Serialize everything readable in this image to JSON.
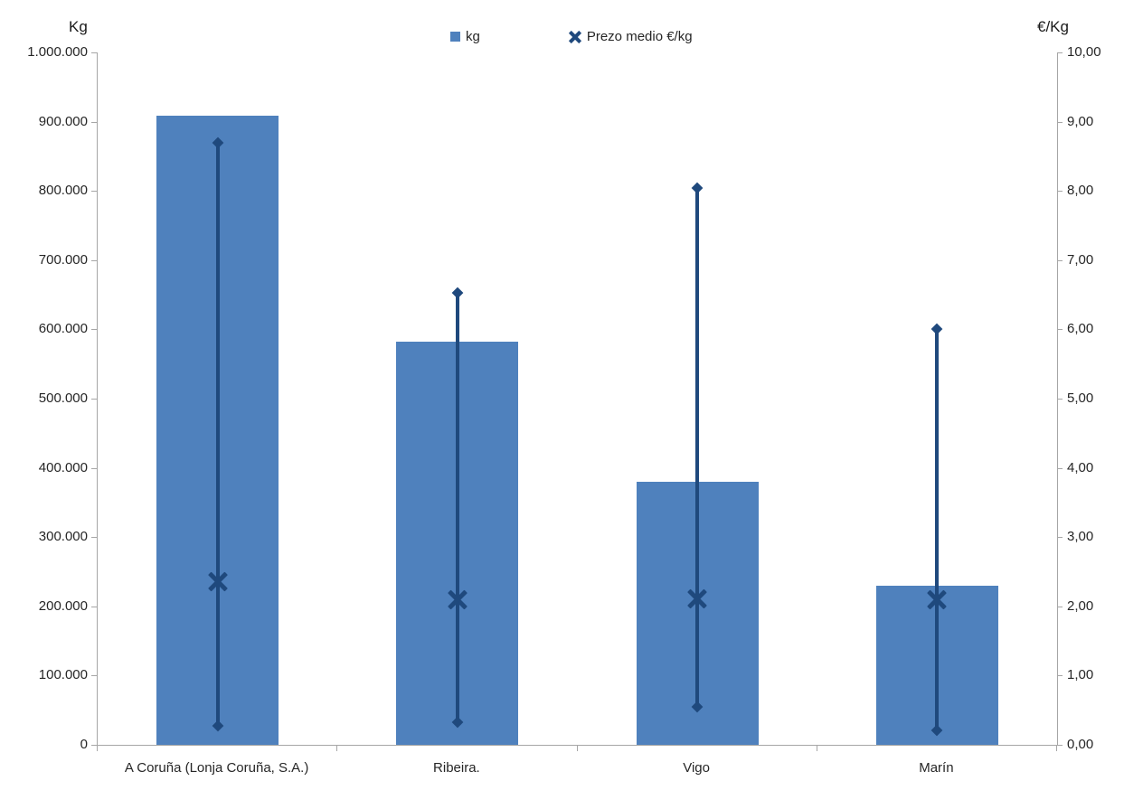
{
  "colors": {
    "bar": "#4F81BD",
    "price": "#1F497D",
    "axis_line": "#A6A6A6",
    "text": "#262626"
  },
  "legend": {
    "items": [
      {
        "label": "kg",
        "marker": "square-icon"
      },
      {
        "label": "Prezo medio €/kg",
        "marker": "x-icon"
      }
    ]
  },
  "chart_data": {
    "type": "bar",
    "title": "",
    "categories": [
      "A Coruña (Lonja Coruña, S.A.)",
      "Ribeira.",
      "Vigo",
      "Marín"
    ],
    "series": [
      {
        "name": "kg",
        "type": "column",
        "axis": "left",
        "values": [
          908000,
          582000,
          380000,
          230000
        ]
      },
      {
        "name": "Prezo medio €/kg",
        "type": "high-low-mean",
        "axis": "right",
        "mean": [
          2.36,
          2.1,
          2.11,
          2.1
        ],
        "high": [
          8.7,
          6.53,
          8.04,
          6.01
        ],
        "low": [
          0.28,
          0.33,
          0.55,
          0.21
        ]
      }
    ],
    "left_axis": {
      "title": "Kg",
      "min": 0,
      "max": 1000000,
      "step": 100000,
      "tick_labels": [
        "1.000.000",
        "900.000",
        "800.000",
        "700.000",
        "600.000",
        "500.000",
        "400.000",
        "300.000",
        "200.000",
        "100.000",
        "0"
      ]
    },
    "right_axis": {
      "title": "€/Kg",
      "min": 0,
      "max": 10,
      "step": 1,
      "tick_labels": [
        "10,00",
        "9,00",
        "8,00",
        "7,00",
        "6,00",
        "5,00",
        "4,00",
        "3,00",
        "2,00",
        "1,00",
        "0,00"
      ]
    },
    "grid": false,
    "legend_position": "top-center"
  }
}
